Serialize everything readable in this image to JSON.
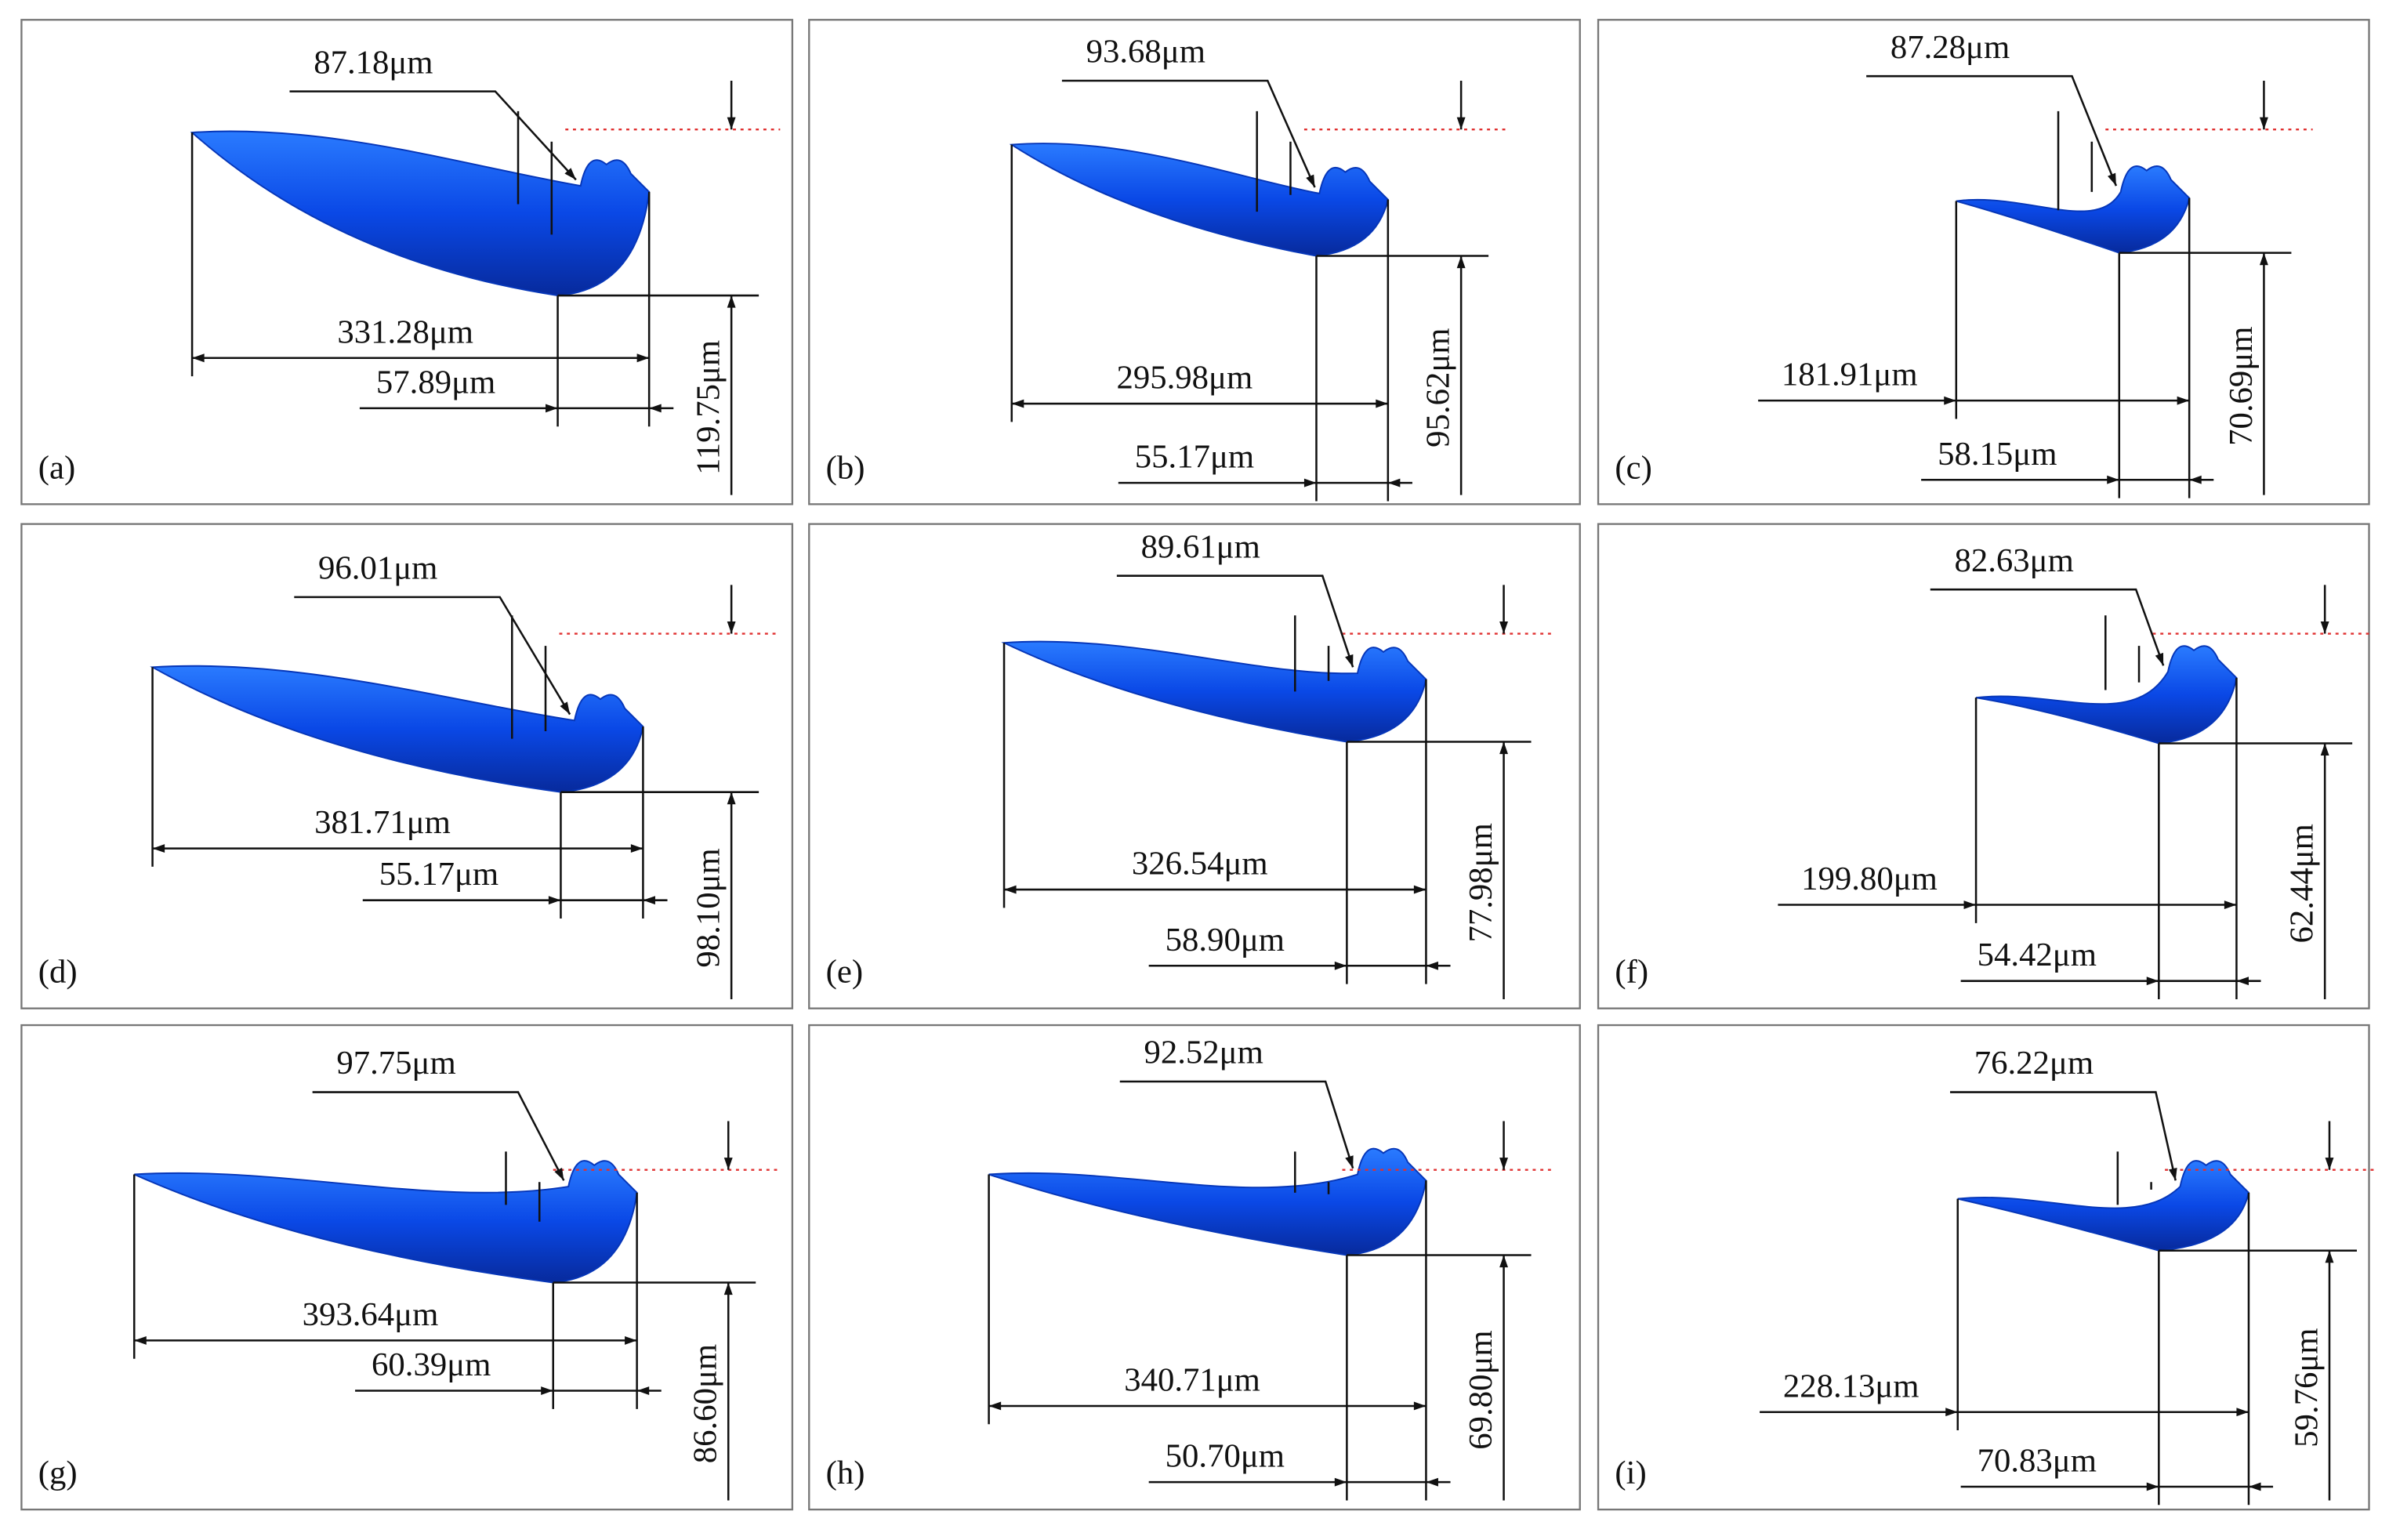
{
  "panels": [
    {
      "label": "(a)",
      "depth": "87.18μm",
      "length": "331.28μm",
      "width": "57.89μm",
      "height": "119.75μm"
    },
    {
      "label": "(b)",
      "depth": "93.68μm",
      "length": "295.98μm",
      "width": "55.17μm",
      "height": "95.62μm"
    },
    {
      "label": "(c)",
      "depth": "87.28μm",
      "length": "181.91μm",
      "width": "58.15μm",
      "height": "70.69μm"
    },
    {
      "label": "(d)",
      "depth": "96.01μm",
      "length": "381.71μm",
      "width": "55.17μm",
      "height": "98.10μm"
    },
    {
      "label": "(e)",
      "depth": "89.61μm",
      "length": "326.54μm",
      "width": "58.90μm",
      "height": "77.98μm"
    },
    {
      "label": "(f)",
      "depth": "82.63μm",
      "length": "199.80μm",
      "width": "54.42μm",
      "height": "62.44μm"
    },
    {
      "label": "(g)",
      "depth": "97.75μm",
      "length": "393.64μm",
      "width": "60.39μm",
      "height": "86.60μm"
    },
    {
      "label": "(h)",
      "depth": "92.52μm",
      "length": "340.71μm",
      "width": "50.70μm",
      "height": "69.80μm"
    },
    {
      "label": "(i)",
      "depth": "76.22μm",
      "length": "228.13μm",
      "width": "70.83μm",
      "height": "59.76μm"
    }
  ]
}
